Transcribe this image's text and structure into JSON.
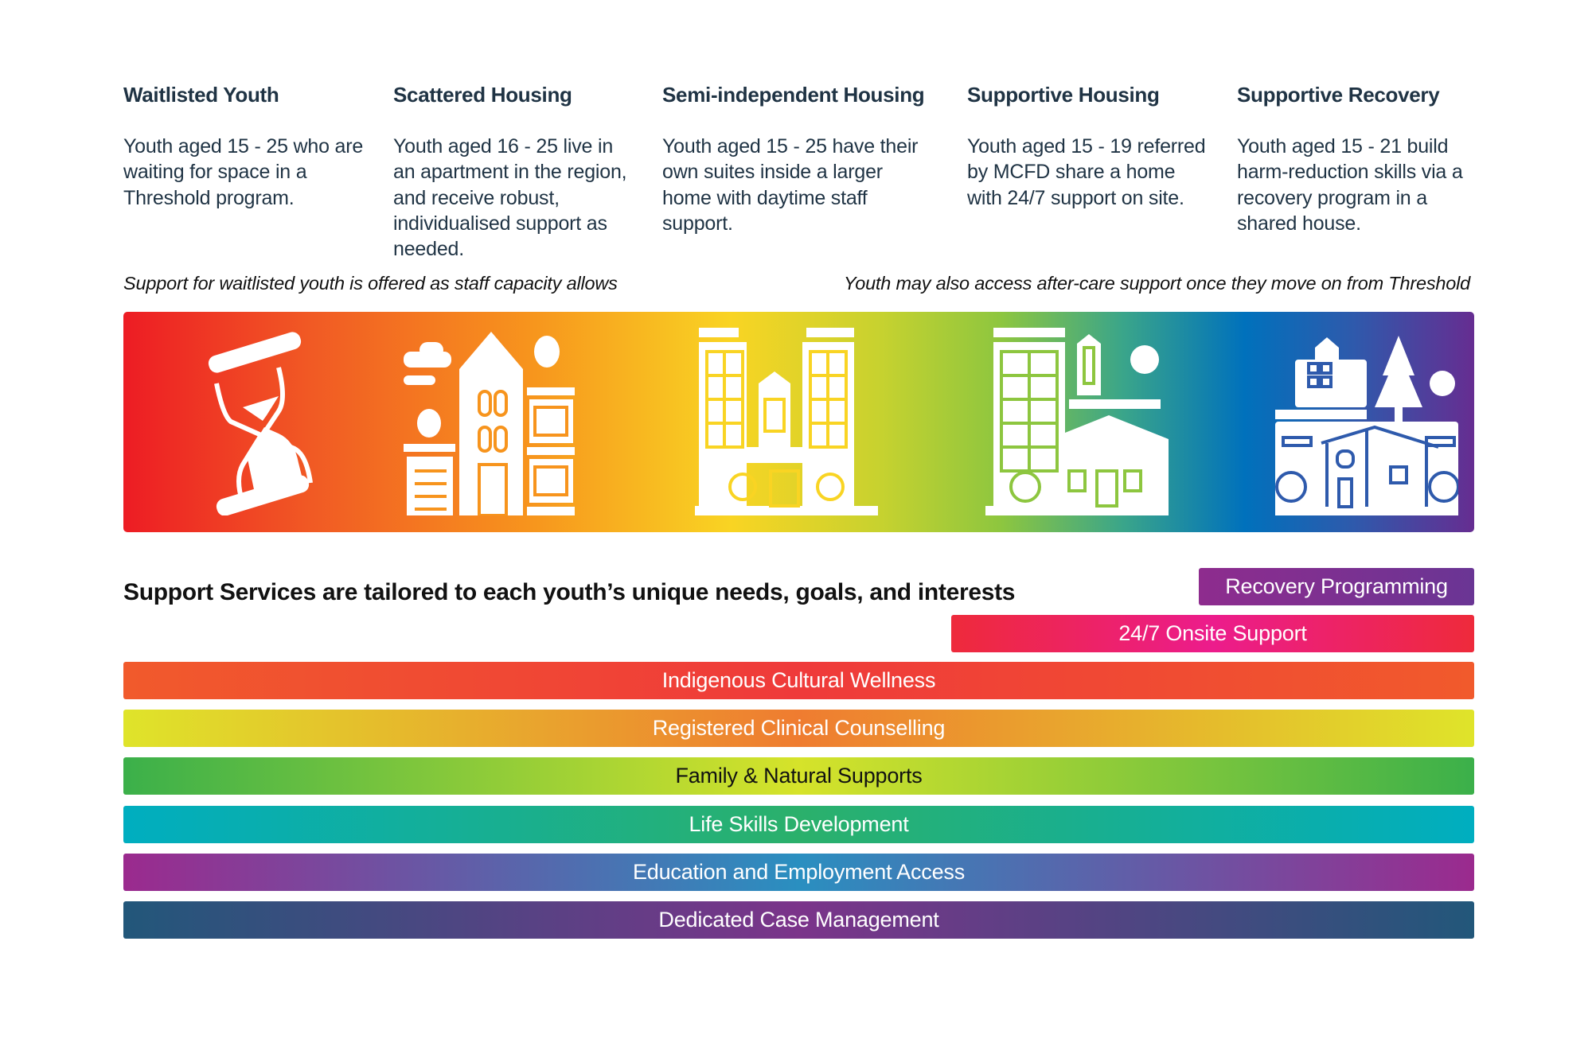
{
  "columns": [
    {
      "title": "Waitlisted Youth",
      "description": "Youth aged 15 - 25 who are waiting for space in a Threshold program."
    },
    {
      "title": "Scattered Housing",
      "description": "Youth aged 16 - 25 live in an apartment in the region, and receive robust, individualised support as needed."
    },
    {
      "title": "Semi-independent Housing",
      "description": "Youth aged 15 - 25 have their own suites inside a larger home with daytime staff support."
    },
    {
      "title": "Supportive Housing",
      "description": "Youth aged 15 - 19 referred by MCFD share a home with 24/7 support on site."
    },
    {
      "title": "Supportive Recovery",
      "description": "Youth aged 15 - 21 build harm-reduction skills via a recovery program in a shared house."
    }
  ],
  "notes": {
    "left": "Support for waitlisted youth is offered as staff capacity allows",
    "right": "Youth may also access after-care support once they move on from Threshold"
  },
  "banner_icons": [
    "hourglass-icon",
    "townhouse-icon",
    "apartment-complex-icon",
    "supportive-home-icon",
    "recovery-house-icon"
  ],
  "services": {
    "heading": "Support Services are tailored to each youth’s unique needs, goals, and interests",
    "bars": [
      {
        "label": "Recovery Programming",
        "colors": [
          "#8e2c8e",
          "#6a3594"
        ]
      },
      {
        "label": "24/7 Onsite Support",
        "colors": [
          "#ee2a3b",
          "#ec1c8c"
        ]
      },
      {
        "label": "Indigenous Cultural Wellness",
        "colors": [
          "#f15a2c",
          "#ef3a3a"
        ]
      },
      {
        "label": "Registered Clinical Counselling",
        "colors": [
          "#dfe42a",
          "#ef7c30"
        ]
      },
      {
        "label": "Family & Natural Supports",
        "colors": [
          "#3bb04a",
          "#d6e32a"
        ]
      },
      {
        "label": "Life Skills Development",
        "colors": [
          "#00aec0",
          "#2bb06b"
        ]
      },
      {
        "label": "Education and Employment Access",
        "colors": [
          "#9b2a8e",
          "#2a8fc0"
        ]
      },
      {
        "label": "Dedicated Case Management",
        "colors": [
          "#22577a",
          "#7b348a"
        ]
      }
    ]
  }
}
